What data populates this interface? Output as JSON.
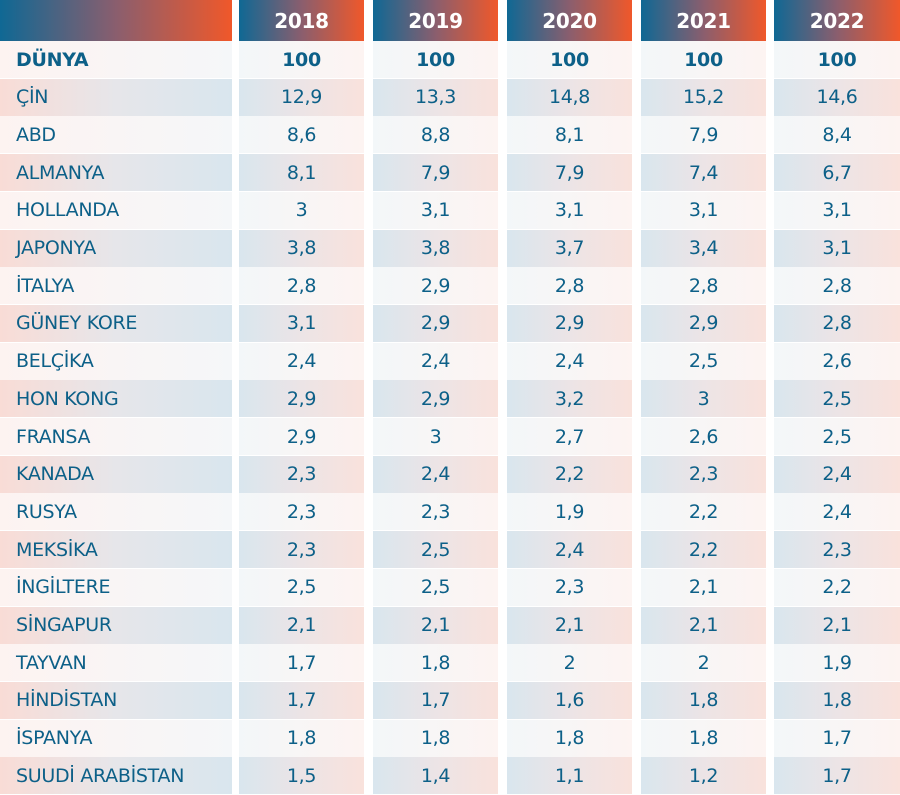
{
  "colors": {
    "text": "#0d6088",
    "header_gradient": [
      "#0f6894",
      "#f0582a"
    ]
  },
  "chart_data": {
    "type": "table",
    "columns": [
      "2018",
      "2019",
      "2020",
      "2021",
      "2022"
    ],
    "rows": [
      {
        "label": "DÜNYA",
        "values": [
          "100",
          "100",
          "100",
          "100",
          "100"
        ]
      },
      {
        "label": "ÇİN",
        "values": [
          "12,9",
          "13,3",
          "14,8",
          "15,2",
          "14,6"
        ]
      },
      {
        "label": "ABD",
        "values": [
          "8,6",
          "8,8",
          "8,1",
          "7,9",
          "8,4"
        ]
      },
      {
        "label": "ALMANYA",
        "values": [
          "8,1",
          "7,9",
          "7,9",
          "7,4",
          "6,7"
        ]
      },
      {
        "label": "HOLLANDA",
        "values": [
          "3",
          "3,1",
          "3,1",
          "3,1",
          "3,1"
        ]
      },
      {
        "label": "JAPONYA",
        "values": [
          "3,8",
          "3,8",
          "3,7",
          "3,4",
          "3,1"
        ]
      },
      {
        "label": "İTALYA",
        "values": [
          "2,8",
          "2,9",
          "2,8",
          "2,8",
          "2,8"
        ]
      },
      {
        "label": "GÜNEY KORE",
        "values": [
          "3,1",
          "2,9",
          "2,9",
          "2,9",
          "2,8"
        ]
      },
      {
        "label": "BELÇİKA",
        "values": [
          "2,4",
          "2,4",
          "2,4",
          "2,5",
          "2,6"
        ]
      },
      {
        "label": "HON KONG",
        "values": [
          "2,9",
          "2,9",
          "3,2",
          "3",
          "2,5"
        ]
      },
      {
        "label": "FRANSA",
        "values": [
          "2,9",
          "3",
          "2,7",
          "2,6",
          "2,5"
        ]
      },
      {
        "label": "KANADA",
        "values": [
          "2,3",
          "2,4",
          "2,2",
          "2,3",
          "2,4"
        ]
      },
      {
        "label": "RUSYA",
        "values": [
          "2,3",
          "2,3",
          "1,9",
          "2,2",
          "2,4"
        ]
      },
      {
        "label": "MEKSİKA",
        "values": [
          "2,3",
          "2,5",
          "2,4",
          "2,2",
          "2,3"
        ]
      },
      {
        "label": "İNGİLTERE",
        "values": [
          "2,5",
          "2,5",
          "2,3",
          "2,1",
          "2,2"
        ]
      },
      {
        "label": "SİNGAPUR",
        "values": [
          "2,1",
          "2,1",
          "2,1",
          "2,1",
          "2,1"
        ]
      },
      {
        "label": "TAYVAN",
        "values": [
          "1,7",
          "1,8",
          "2",
          "2",
          "1,9"
        ]
      },
      {
        "label": "HİNDİSTAN",
        "values": [
          "1,7",
          "1,7",
          "1,6",
          "1,8",
          "1,8"
        ]
      },
      {
        "label": "İSPANYA",
        "values": [
          "1,8",
          "1,8",
          "1,8",
          "1,8",
          "1,7"
        ]
      },
      {
        "label": "SUUDİ ARABİSTAN",
        "values": [
          "1,5",
          "1,4",
          "1,1",
          "1,2",
          "1,7"
        ]
      }
    ]
  }
}
